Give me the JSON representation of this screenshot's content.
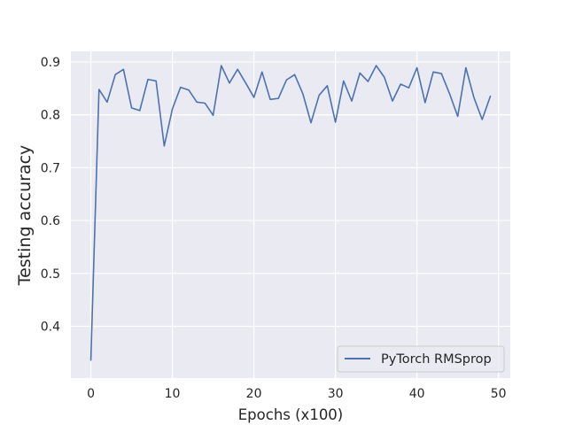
{
  "chart_data": {
    "type": "line",
    "xlabel": "Epochs (x100)",
    "ylabel": "Testing accuracy",
    "xlim": [
      -2.45,
      51.45
    ],
    "ylim": [
      0.302,
      0.92
    ],
    "xticks": [
      0,
      10,
      20,
      30,
      40,
      50
    ],
    "xtick_labels": [
      "0",
      "10",
      "20",
      "30",
      "40",
      "50"
    ],
    "yticks": [
      0.4,
      0.5,
      0.6,
      0.7,
      0.8,
      0.9
    ],
    "ytick_labels": [
      "0.4",
      "0.5",
      "0.6",
      "0.7",
      "0.8",
      "0.9"
    ],
    "grid": true,
    "legend_position": "lower right",
    "series": [
      {
        "name": "PyTorch RMSprop",
        "color": "#4c72b0",
        "x": [
          0,
          1,
          2,
          3,
          4,
          5,
          6,
          7,
          8,
          9,
          10,
          11,
          12,
          13,
          14,
          15,
          16,
          17,
          18,
          19,
          20,
          21,
          22,
          23,
          24,
          25,
          26,
          27,
          28,
          29,
          30,
          31,
          32,
          33,
          34,
          35,
          36,
          37,
          38,
          39,
          40,
          41,
          42,
          43,
          44,
          45,
          46,
          47,
          48,
          49
        ],
        "y": [
          0.336,
          0.848,
          0.824,
          0.876,
          0.886,
          0.813,
          0.808,
          0.867,
          0.864,
          0.741,
          0.811,
          0.852,
          0.847,
          0.824,
          0.822,
          0.799,
          0.893,
          0.86,
          0.886,
          0.86,
          0.833,
          0.881,
          0.829,
          0.831,
          0.866,
          0.876,
          0.84,
          0.785,
          0.837,
          0.855,
          0.786,
          0.864,
          0.826,
          0.879,
          0.863,
          0.893,
          0.871,
          0.826,
          0.858,
          0.851,
          0.889,
          0.823,
          0.881,
          0.878,
          0.84,
          0.797,
          0.889,
          0.832,
          0.791,
          0.835
        ]
      }
    ]
  }
}
